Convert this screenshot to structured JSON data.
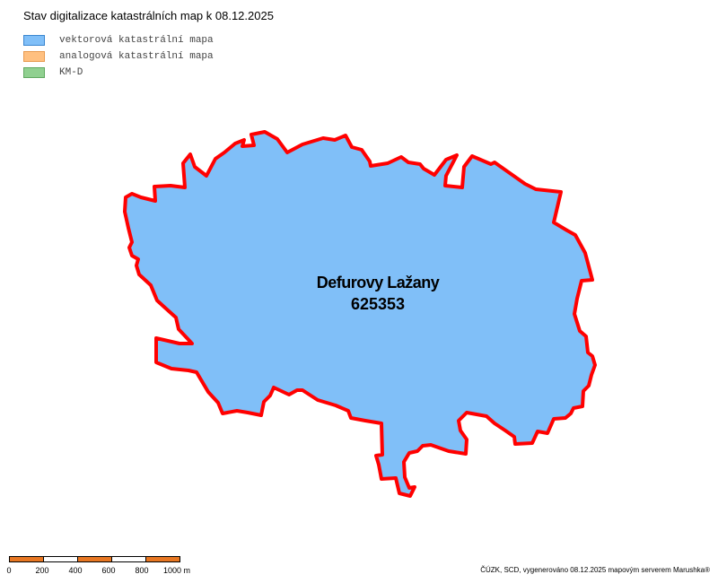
{
  "title": "Stav digitalizace katastrálních map k 08.12.2025",
  "legend": [
    {
      "label": "vektorová katastrální mapa",
      "fill": "#80bff8",
      "stroke": "#3a86d0"
    },
    {
      "label": "analogová katastrální mapa",
      "fill": "#ffc080",
      "stroke": "#e89a50"
    },
    {
      "label": "KM-D",
      "fill": "#90d090",
      "stroke": "#60a860"
    }
  ],
  "area": {
    "name": "Defurovy Lažany",
    "code": "625353",
    "fill": "#80bff8",
    "border": "#ff0000",
    "status": "vektorová katastrální mapa"
  },
  "scalebar": {
    "ticks": [
      "0",
      "200",
      "400",
      "600",
      "800",
      "1000 m"
    ],
    "colors": [
      "#e87722",
      "#ffffff"
    ]
  },
  "credit": "ČÚZK, SCD, vygenerováno 08.12.2025 mapovým serverem Marushka®"
}
